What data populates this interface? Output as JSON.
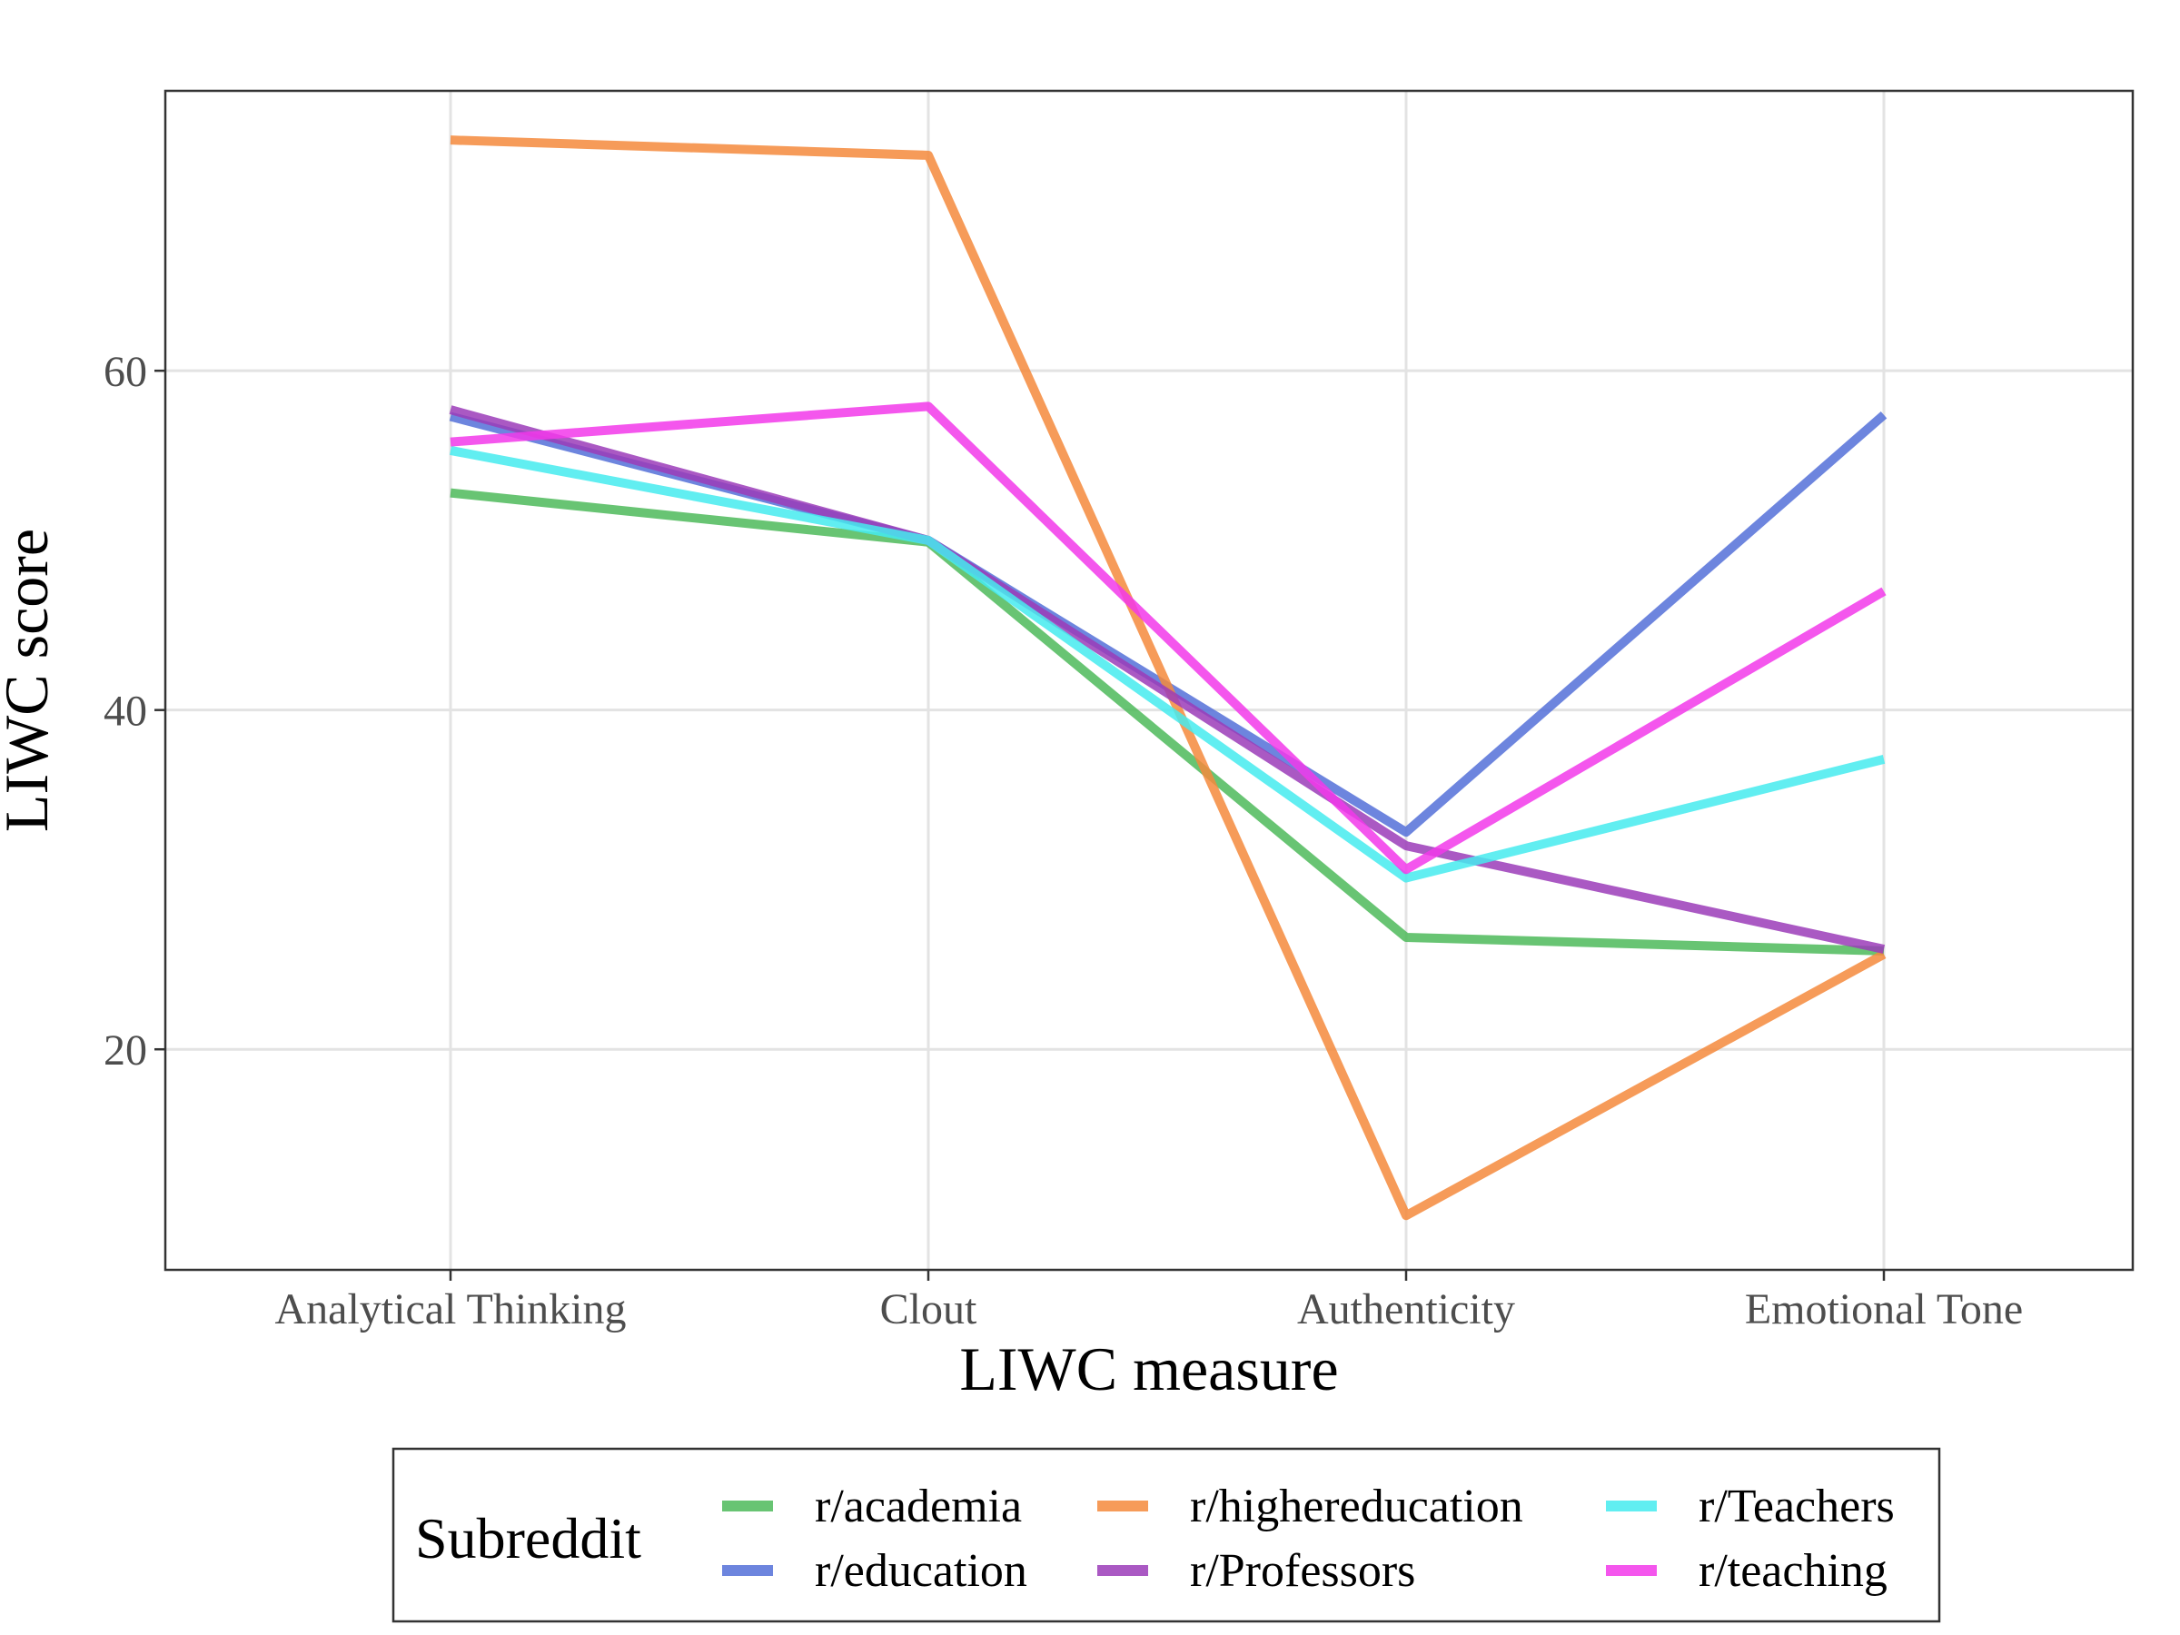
{
  "chart_data": {
    "type": "line",
    "xlabel": "LIWC measure",
    "ylabel": "LIWC score",
    "categories": [
      "Analytical Thinking",
      "Clout",
      "Authenticity",
      "Emotional Tone"
    ],
    "ylim": [
      7,
      76.5
    ],
    "yticks": [
      20,
      40,
      60
    ],
    "grid": true,
    "legend": {
      "title": "Subreddit",
      "position": "bottom"
    },
    "series": [
      {
        "name": "r/academia",
        "color": "#4DBA5A",
        "values": [
          52.8,
          49.9,
          26.6,
          25.8
        ]
      },
      {
        "name": "r/education",
        "color": "#5470D8",
        "values": [
          57.3,
          50.0,
          32.8,
          57.4
        ]
      },
      {
        "name": "r/highereducation",
        "color": "#F58A3C",
        "values": [
          73.6,
          72.7,
          10.2,
          25.6
        ]
      },
      {
        "name": "r/Professors",
        "color": "#9B3CB8",
        "values": [
          57.7,
          50.0,
          32.0,
          25.9
        ]
      },
      {
        "name": "r/Teachers",
        "color": "#45EBEF",
        "values": [
          55.3,
          50.0,
          30.1,
          37.1
        ]
      },
      {
        "name": "r/teaching",
        "color": "#F238EA",
        "values": [
          55.8,
          57.9,
          30.6,
          47.0
        ]
      }
    ]
  }
}
